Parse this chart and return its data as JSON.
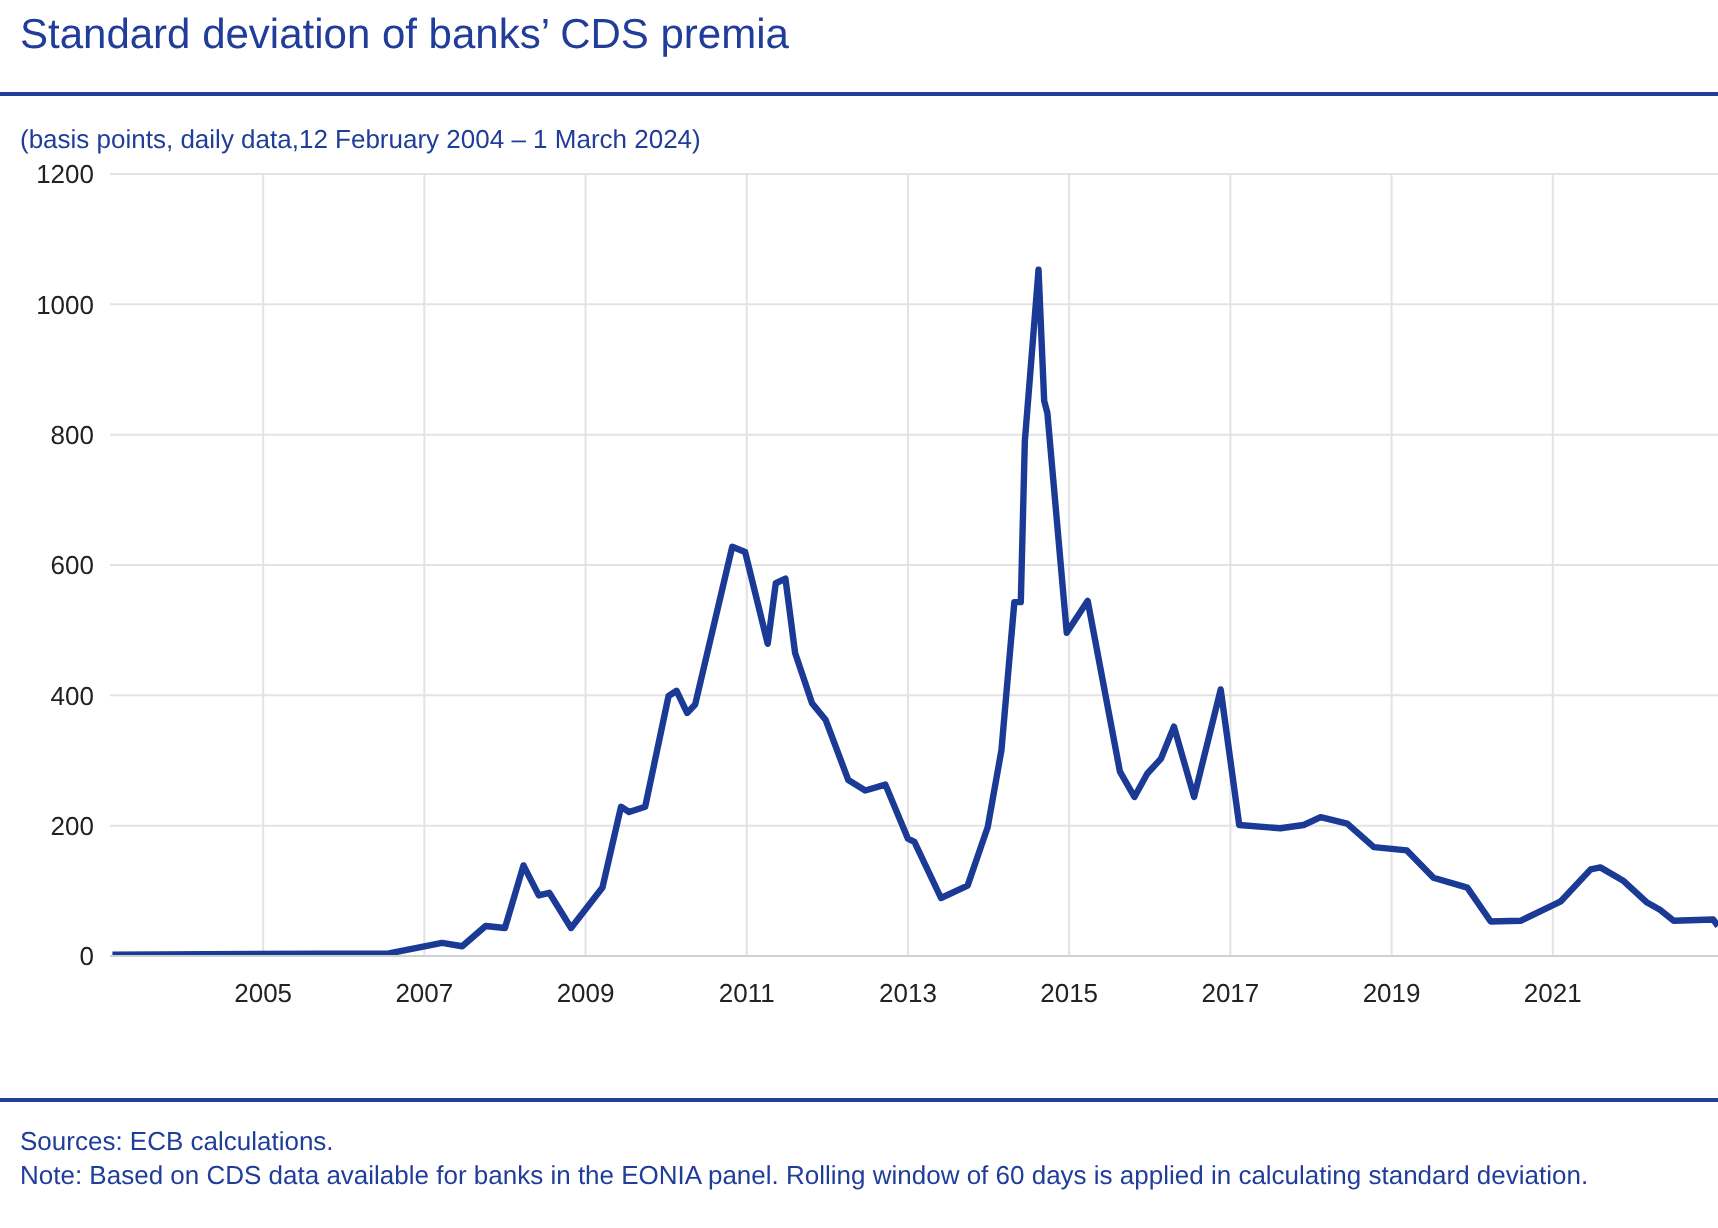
{
  "chart_data": {
    "type": "line",
    "title": "Standard deviation of banks’ CDS premia",
    "subtitle": "(basis points, daily data,12 February 2004 – 1 March 2024)",
    "x": [
      2003.13,
      2006.56,
      2007.22,
      2007.47,
      2007.76,
      2008.0,
      2008.23,
      2008.42,
      2008.55,
      2008.82,
      2009.21,
      2009.44,
      2009.54,
      2009.74,
      2010.03,
      2010.13,
      2010.26,
      2010.36,
      2010.82,
      2010.98,
      2011.26,
      2011.36,
      2011.48,
      2011.6,
      2011.81,
      2011.98,
      2012.26,
      2012.47,
      2012.72,
      2013.0,
      2013.08,
      2013.41,
      2013.74,
      2013.99,
      2014.16,
      2014.32,
      2014.4,
      2014.45,
      2014.62,
      2014.69,
      2014.73,
      2014.97,
      2015.23,
      2015.63,
      2015.81,
      2015.97,
      2016.14,
      2016.3,
      2016.55,
      2016.88,
      2017.11,
      2017.62,
      2017.91,
      2018.12,
      2018.45,
      2018.78,
      2019.19,
      2019.52,
      2019.94,
      2020.23,
      2020.6,
      2021.1,
      2021.47,
      2021.59,
      2021.88,
      2022.17,
      2022.33,
      2022.5,
      2022.99,
      2023.05
    ],
    "series": [
      {
        "color": "#1b3a96",
        "values": [
          2,
          4,
          20,
          15,
          46,
          43,
          139,
          93,
          97,
          43,
          105,
          229,
          221,
          229,
          399,
          407,
          373,
          386,
          628,
          620,
          479,
          572,
          579,
          465,
          388,
          362,
          270,
          254,
          263,
          180,
          175,
          89,
          108,
          198,
          316,
          543,
          543,
          790,
          1053,
          852,
          833,
          496,
          545,
          283,
          244,
          280,
          303,
          352,
          244,
          409,
          201,
          196,
          201,
          213,
          203,
          167,
          162,
          120,
          105,
          53,
          54,
          84,
          133,
          136,
          115,
          82,
          71,
          54,
          56,
          46
        ]
      }
    ],
    "xlim": [
      2003.1,
      2023.05
    ],
    "xticks": [
      2005,
      2007,
      2009,
      2011,
      2013,
      2015,
      2017,
      2019,
      2021
    ],
    "ylim": [
      0,
      1200
    ],
    "yticks": [
      0,
      200,
      400,
      600,
      800,
      1000,
      1200
    ],
    "grid": true,
    "legend": false,
    "marker": "none",
    "line_style": "solid",
    "annotations": [
      "Sources: ECB calculations.",
      "Note: Based on CDS data available for banks in the EONIA panel. Rolling window of 60 days is applied in calculating standard deviation."
    ]
  }
}
